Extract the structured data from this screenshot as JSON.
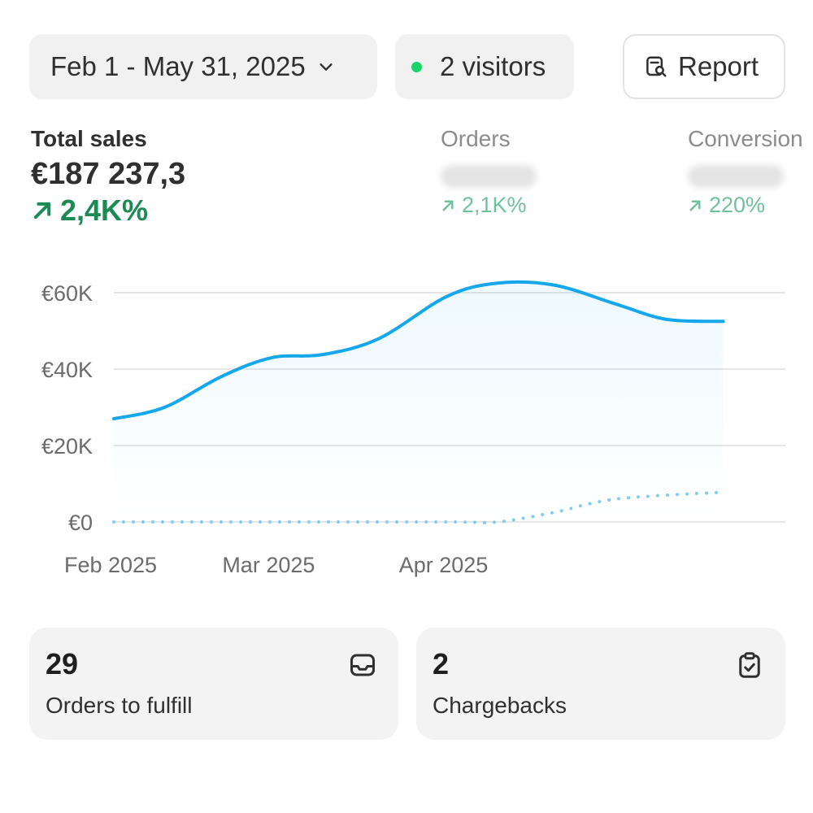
{
  "toolbar": {
    "date_range": "Feb 1 - May 31, 2025",
    "visitors": "2 visitors",
    "report_label": "Report"
  },
  "metrics": {
    "total_sales": {
      "label": "Total sales",
      "value": "€187 237,3",
      "change": "2,4K%"
    },
    "orders": {
      "label": "Orders",
      "change": "2,1K%"
    },
    "conversion": {
      "label": "Conversion",
      "change": "220%"
    }
  },
  "colors": {
    "accent": "#14a7ec",
    "positive": "#1b8a55",
    "live_dot": "#19d46a"
  },
  "chart_data": {
    "type": "line",
    "y_ticks": [
      "€0",
      "€20K",
      "€40K",
      "€60K"
    ],
    "x_ticks": [
      "Feb 2025",
      "Mar 2025",
      "Apr 2025"
    ],
    "ylim": [
      0,
      60000
    ],
    "grid": true,
    "series": [
      {
        "style": "solid-area",
        "points": [
          [
            "2025-02-01",
            27000
          ],
          [
            "2025-02-10",
            30000
          ],
          [
            "2025-02-20",
            38000
          ],
          [
            "2025-03-01",
            43000
          ],
          [
            "2025-03-10",
            43800
          ],
          [
            "2025-03-20",
            48000
          ],
          [
            "2025-04-01",
            59000
          ],
          [
            "2025-04-10",
            62500
          ],
          [
            "2025-04-20",
            62000
          ],
          [
            "2025-05-01",
            57000
          ],
          [
            "2025-05-10",
            53000
          ],
          [
            "2025-05-20",
            52500
          ]
        ]
      },
      {
        "style": "dotted",
        "points": [
          [
            "2025-02-01",
            0
          ],
          [
            "2025-03-01",
            0
          ],
          [
            "2025-04-01",
            0
          ],
          [
            "2025-04-10",
            0
          ],
          [
            "2025-04-20",
            2500
          ],
          [
            "2025-05-01",
            6000
          ],
          [
            "2025-05-20",
            7800
          ]
        ]
      }
    ]
  },
  "cards": [
    {
      "value": "29",
      "label": "Orders to fulfill"
    },
    {
      "value": "2",
      "label": "Chargebacks"
    }
  ]
}
